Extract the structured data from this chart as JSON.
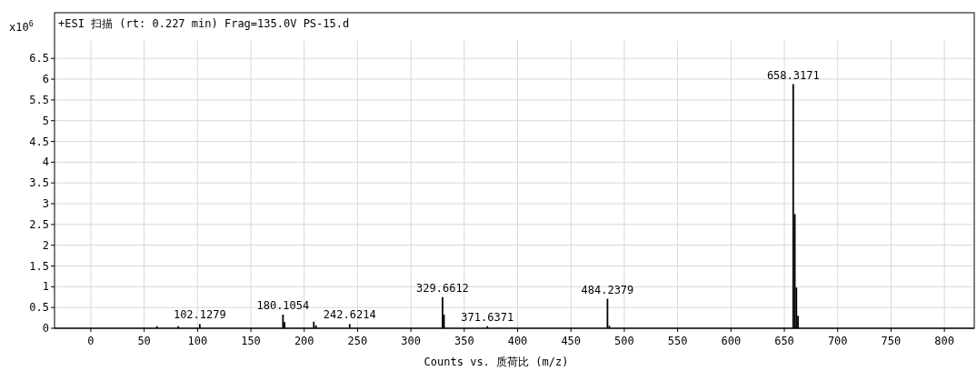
{
  "chart_data": {
    "type": "bar",
    "title": "+ESI 扫描 (rt: 0.227 min) Frag=135.0V PS-15.d",
    "ylabel": "x10$^{6}$",
    "xlabel": "Counts vs. 质荷比 (m/z)",
    "x": [
      62,
      82,
      102.1279,
      180.1054,
      181.6,
      209,
      211,
      242.6214,
      329.6612,
      331,
      371.6371,
      484.2379,
      486,
      658.3171,
      659.8,
      661.3,
      662.8
    ],
    "values": [
      0.05,
      0.05,
      0.1,
      0.33,
      0.15,
      0.16,
      0.07,
      0.1,
      0.75,
      0.33,
      0.05,
      0.71,
      0.06,
      5.88,
      2.75,
      0.98,
      0.3
    ],
    "color": "#000000",
    "xlim": [
      -34,
      828
    ],
    "ylim": [
      0,
      7.6
    ],
    "xticks": [
      0,
      50,
      100,
      150,
      200,
      250,
      300,
      350,
      400,
      450,
      500,
      550,
      600,
      650,
      700,
      750,
      800
    ],
    "yticks": [
      0,
      0.5,
      1,
      1.5,
      2,
      2.5,
      3,
      3.5,
      4,
      4.5,
      5,
      5.5,
      6,
      6.5
    ],
    "grid": true,
    "annotations": [
      {
        "text": "102.1279",
        "x": 102.1279,
        "y": 0.1
      },
      {
        "text": "180.1054",
        "x": 180.1054,
        "y": 0.33
      },
      {
        "text": "242.6214",
        "x": 242.6214,
        "y": 0.1
      },
      {
        "text": "329.6612",
        "x": 329.6612,
        "y": 0.75
      },
      {
        "text": "371.6371",
        "x": 371.6371,
        "y": 0.05
      },
      {
        "text": "484.2379",
        "x": 484.2379,
        "y": 0.71
      },
      {
        "text": "658.3171",
        "x": 658.3171,
        "y": 5.88
      }
    ]
  }
}
